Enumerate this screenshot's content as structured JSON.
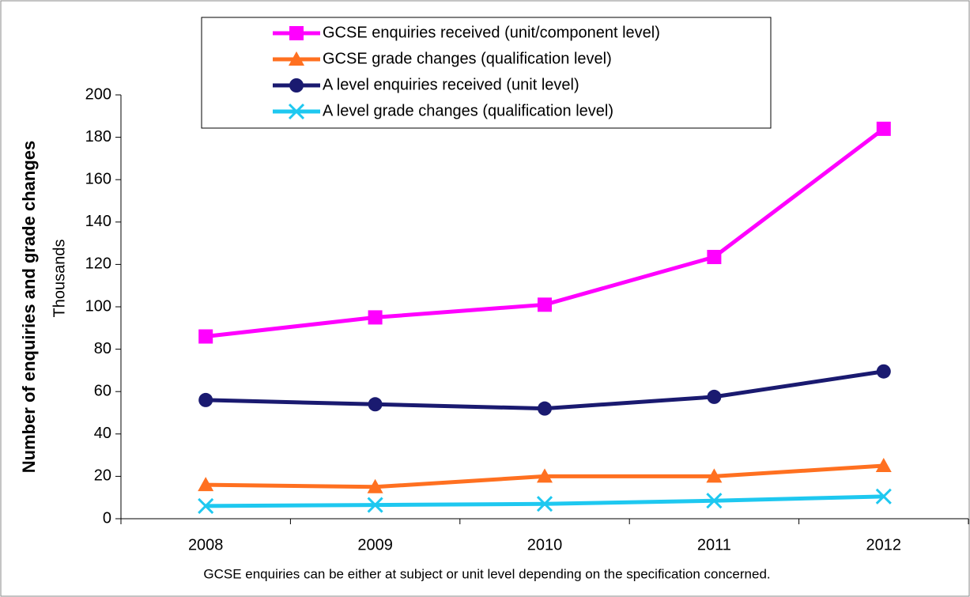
{
  "chart_data": {
    "type": "line",
    "y_label": "Number of enquiries  and grade changes",
    "y_unit_label": "Thousands",
    "note": "GCSE enquiries can be either at subject or unit level depending on the specification concerned.",
    "categories": [
      "2008",
      "2009",
      "2010",
      "2011",
      "2012"
    ],
    "series": [
      {
        "name": "GCSE enquiries received (unit/component level)",
        "color": "#ff00ff",
        "marker": "square",
        "values": [
          86,
          95,
          101,
          123.5,
          184
        ]
      },
      {
        "name": "GCSE grade changes (qualification level)",
        "color": "#ff7020",
        "marker": "triangle",
        "values": [
          16,
          15,
          20,
          20,
          25
        ]
      },
      {
        "name": "A level enquiries received (unit level)",
        "color": "#1a1a70",
        "marker": "circle",
        "values": [
          56,
          54,
          52,
          57.5,
          69.5
        ]
      },
      {
        "name": "A level grade changes (qualification level)",
        "color": "#1ec8f0",
        "marker": "x",
        "values": [
          6,
          6.5,
          7,
          8.5,
          10.5
        ]
      }
    ],
    "ylim": [
      0,
      200
    ],
    "yticks": [
      0,
      20,
      40,
      60,
      80,
      100,
      120,
      140,
      160,
      180,
      200
    ],
    "grid": false
  }
}
